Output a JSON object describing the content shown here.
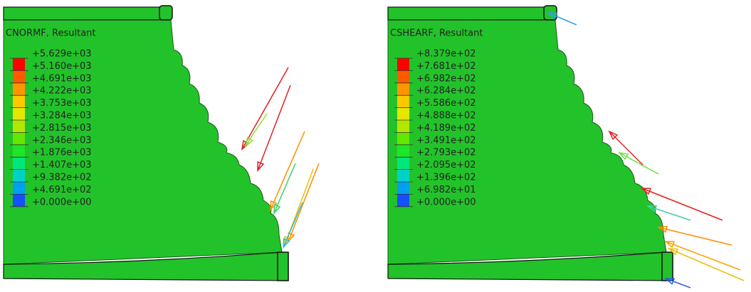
{
  "panels": [
    {
      "title": "CNORMF, Resultant",
      "legend": [
        "+5.629e+03",
        "+5.160e+03",
        "+4.691e+03",
        "+4.222e+03",
        "+3.753e+03",
        "+3.284e+03",
        "+2.815e+03",
        "+2.346e+03",
        "+1.876e+03",
        "+1.407e+03",
        "+9.382e+02",
        "+4.691e+02",
        "+0.000e+00"
      ]
    },
    {
      "title": "CSHEARF, Resultant",
      "legend": [
        "+8.379e+02",
        "+7.681e+02",
        "+6.982e+02",
        "+6.284e+02",
        "+5.586e+02",
        "+4.888e+02",
        "+4.189e+02",
        "+3.491e+02",
        "+2.793e+02",
        "+2.095e+02",
        "+1.396e+02",
        "+6.982e+01",
        "+0.000e+00"
      ]
    }
  ]
}
